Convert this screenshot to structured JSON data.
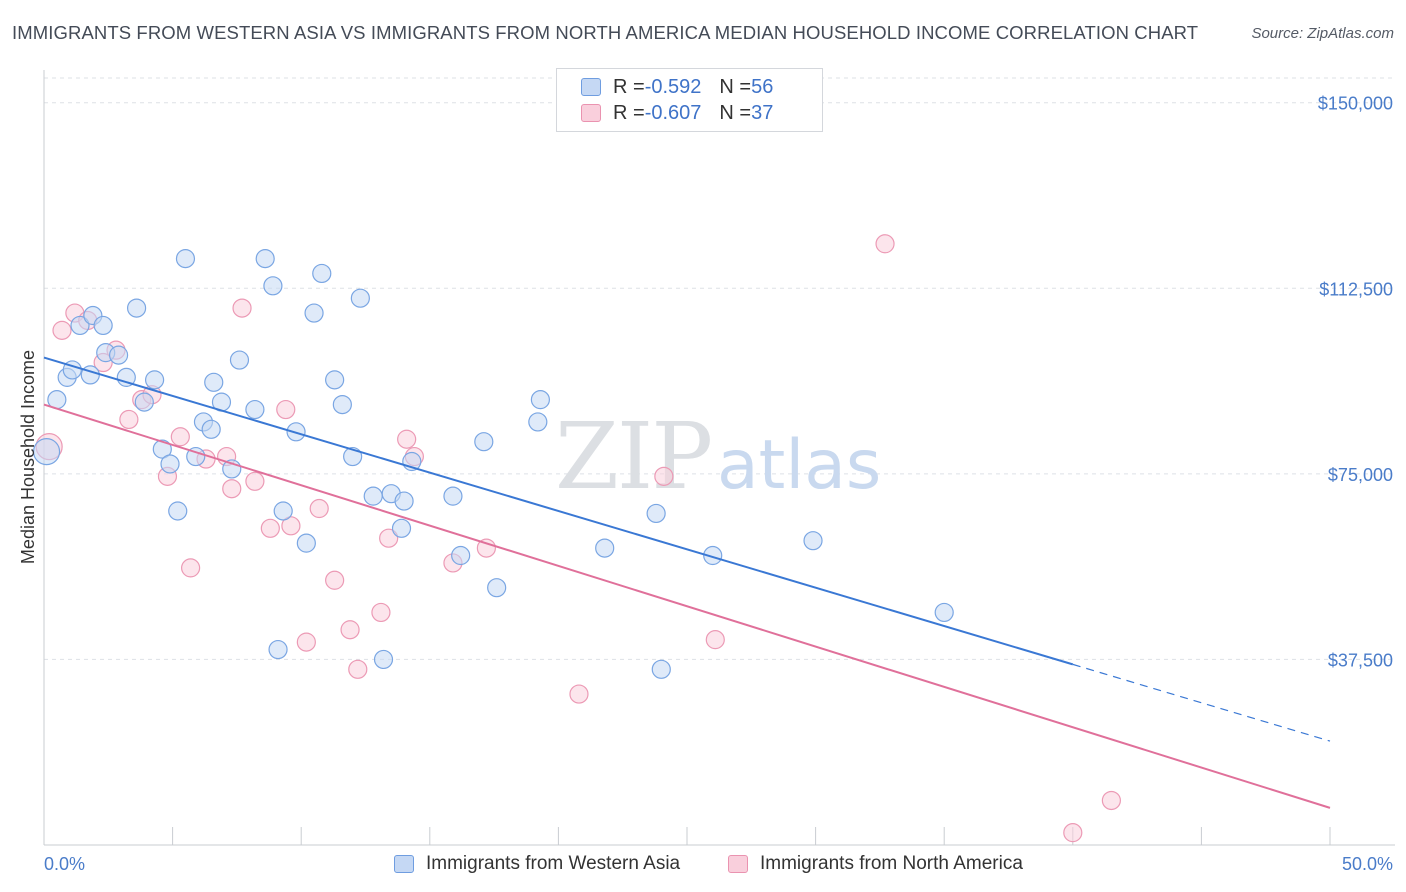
{
  "header": {
    "title": "IMMIGRANTS FROM WESTERN ASIA VS IMMIGRANTS FROM NORTH AMERICA MEDIAN HOUSEHOLD INCOME CORRELATION CHART",
    "source": "Source: ZipAtlas.com"
  },
  "watermark": {
    "zip": "ZIP",
    "atlas": "atlas"
  },
  "legend": {
    "r_label": "R = ",
    "n_label": "N = ",
    "series": [
      {
        "name": "Immigrants from Western Asia",
        "r": "-0.592",
        "n": "56",
        "color": "#6f9de0"
      },
      {
        "name": "Immigrants from North America",
        "r": "-0.607",
        "n": "37",
        "color": "#ea93b0"
      }
    ]
  },
  "colors": {
    "blue_fill": "#c5d8f4",
    "blue_stroke": "#7aa6e3",
    "blue_line": "#3a78d4",
    "pink_fill": "#f9cfdc",
    "pink_stroke": "#ec9ab5",
    "pink_line": "#e0709a",
    "grid": "#dde1e6",
    "axis_text": "#4a7cc9"
  },
  "chart_data": {
    "type": "scatter",
    "title": "IMMIGRANTS FROM WESTERN ASIA VS IMMIGRANTS FROM NORTH AMERICA MEDIAN HOUSEHOLD INCOME CORRELATION CHART",
    "xlabel": "",
    "ylabel": "Median Household Income",
    "xlim": [
      0,
      50
    ],
    "ylim": [
      0,
      155000
    ],
    "x_tick_labels": [
      "0.0%",
      "50.0%"
    ],
    "y_ticks": [
      37500,
      75000,
      112500,
      150000
    ],
    "y_tick_labels": [
      "$37,500",
      "$75,000",
      "$112,500",
      "$150,000"
    ],
    "grid": true,
    "legend_position": "top-center",
    "series": [
      {
        "name": "Immigrants from Western Asia",
        "r": -0.592,
        "n": 56,
        "trend": {
          "x0": 0,
          "y0": 98500,
          "x1": 40,
          "y1": 36500,
          "dashed_to_x": 50,
          "dashed_to_y": 21000
        },
        "points": [
          [
            0.1,
            79500
          ],
          [
            0.5,
            90000
          ],
          [
            0.9,
            94500
          ],
          [
            1.1,
            96000
          ],
          [
            1.4,
            105000
          ],
          [
            1.9,
            107000
          ],
          [
            1.8,
            95000
          ],
          [
            2.3,
            105000
          ],
          [
            2.4,
            99500
          ],
          [
            2.9,
            99000
          ],
          [
            3.2,
            94500
          ],
          [
            3.6,
            108500
          ],
          [
            3.9,
            89500
          ],
          [
            4.3,
            94000
          ],
          [
            4.6,
            80000
          ],
          [
            4.9,
            77000
          ],
          [
            5.2,
            67500
          ],
          [
            5.5,
            118500
          ],
          [
            5.9,
            78500
          ],
          [
            6.2,
            85500
          ],
          [
            6.5,
            84000
          ],
          [
            6.6,
            93500
          ],
          [
            6.9,
            89500
          ],
          [
            7.3,
            76000
          ],
          [
            7.6,
            98000
          ],
          [
            8.2,
            88000
          ],
          [
            8.6,
            118500
          ],
          [
            8.9,
            113000
          ],
          [
            9.1,
            39500
          ],
          [
            9.3,
            67500
          ],
          [
            9.8,
            83500
          ],
          [
            10.2,
            61000
          ],
          [
            10.5,
            107500
          ],
          [
            10.8,
            115500
          ],
          [
            11.3,
            94000
          ],
          [
            11.6,
            89000
          ],
          [
            12.0,
            78500
          ],
          [
            12.3,
            110500
          ],
          [
            12.8,
            70500
          ],
          [
            13.2,
            37500
          ],
          [
            13.5,
            71000
          ],
          [
            13.9,
            64000
          ],
          [
            14.0,
            69500
          ],
          [
            14.3,
            77500
          ],
          [
            15.9,
            70500
          ],
          [
            16.2,
            58500
          ],
          [
            17.1,
            81500
          ],
          [
            17.6,
            52000
          ],
          [
            19.2,
            85500
          ],
          [
            19.3,
            90000
          ],
          [
            21.8,
            60000
          ],
          [
            23.8,
            67000
          ],
          [
            24.0,
            35500
          ],
          [
            26.0,
            58500
          ],
          [
            29.9,
            61500
          ],
          [
            35.0,
            47000
          ]
        ]
      },
      {
        "name": "Immigrants from North America",
        "r": -0.607,
        "n": 37,
        "trend": {
          "x0": 0,
          "y0": 89000,
          "x1": 50,
          "y1": 7500
        },
        "points": [
          [
            0.2,
            80500
          ],
          [
            0.7,
            104000
          ],
          [
            1.2,
            107500
          ],
          [
            1.7,
            106000
          ],
          [
            2.3,
            97500
          ],
          [
            2.8,
            100000
          ],
          [
            3.3,
            86000
          ],
          [
            3.8,
            90000
          ],
          [
            4.2,
            91000
          ],
          [
            4.8,
            74500
          ],
          [
            5.3,
            82500
          ],
          [
            5.7,
            56000
          ],
          [
            6.3,
            78000
          ],
          [
            7.1,
            78500
          ],
          [
            7.3,
            72000
          ],
          [
            7.7,
            108500
          ],
          [
            8.2,
            73500
          ],
          [
            8.8,
            64000
          ],
          [
            9.4,
            88000
          ],
          [
            9.6,
            64500
          ],
          [
            10.2,
            41000
          ],
          [
            10.7,
            68000
          ],
          [
            11.3,
            53500
          ],
          [
            11.9,
            43500
          ],
          [
            12.2,
            35500
          ],
          [
            13.1,
            47000
          ],
          [
            13.4,
            62000
          ],
          [
            14.1,
            82000
          ],
          [
            14.4,
            78500
          ],
          [
            15.9,
            57000
          ],
          [
            17.2,
            60000
          ],
          [
            20.8,
            30500
          ],
          [
            24.1,
            74500
          ],
          [
            26.1,
            41500
          ],
          [
            32.7,
            121500
          ],
          [
            40.0,
            2500
          ],
          [
            41.5,
            9000
          ]
        ]
      }
    ]
  }
}
